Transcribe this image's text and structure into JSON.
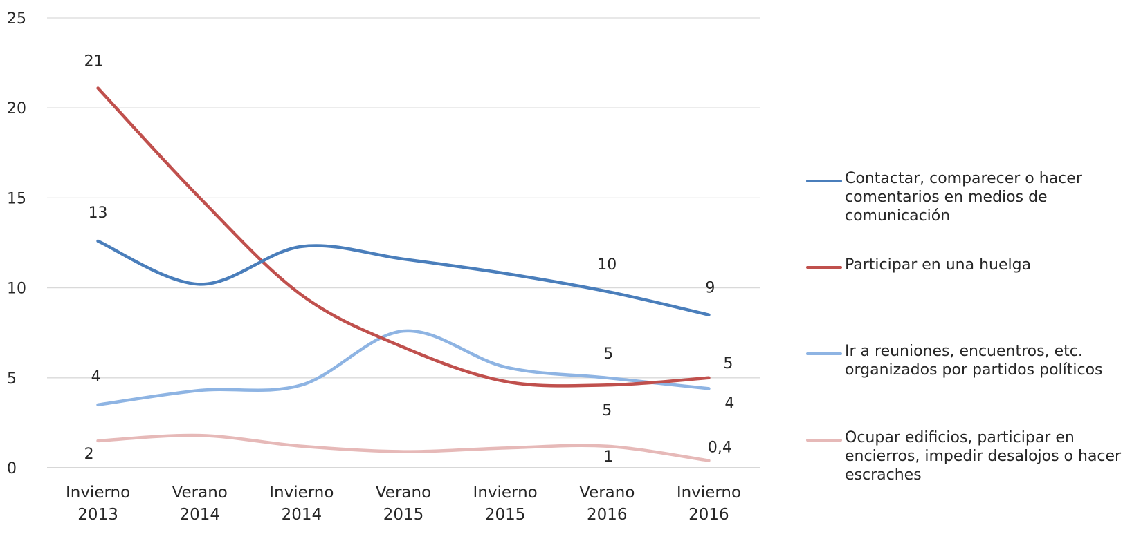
{
  "chart_data": {
    "type": "line",
    "categories": [
      "Invierno 2013",
      "Verano 2014",
      "Invierno 2014",
      "Verano 2015",
      "Invierno 2015",
      "Verano 2016",
      "Invierno 2016"
    ],
    "category_lines": [
      [
        "Invierno",
        "2013"
      ],
      [
        "Verano",
        "2014"
      ],
      [
        "Invierno",
        "2014"
      ],
      [
        "Verano",
        "2015"
      ],
      [
        "Invierno",
        "2015"
      ],
      [
        "Verano",
        "2016"
      ],
      [
        "Invierno",
        "2016"
      ]
    ],
    "ylim": [
      0,
      25
    ],
    "yticks": [
      0,
      5,
      10,
      15,
      20,
      25
    ],
    "grid": true,
    "smooth": true,
    "legend_position": "right",
    "title": "",
    "xlabel": "",
    "ylabel": "",
    "series": [
      {
        "name": "Contactar, comparecer o hacer comentarios en medios de comunicación",
        "color": "#4a7ebb",
        "values": [
          12.6,
          10.2,
          12.3,
          11.6,
          10.8,
          9.8,
          8.5
        ],
        "labels": [
          {
            "index": 0,
            "text": "13"
          },
          {
            "index": 5,
            "text": "10"
          },
          {
            "index": 6,
            "text": "9"
          }
        ]
      },
      {
        "name": "Participar en una huelga",
        "color": "#c0504d",
        "values": [
          21.1,
          15.0,
          9.6,
          6.7,
          4.8,
          4.6,
          5.0
        ],
        "labels": [
          {
            "index": 0,
            "text": "21"
          },
          {
            "index": 5,
            "text": "5"
          },
          {
            "index": 6,
            "text": "5"
          }
        ]
      },
      {
        "name": "Ir a reuniones, encuentros, etc. organizados por partidos políticos",
        "color": "#8eb4e3",
        "values": [
          3.5,
          4.3,
          4.6,
          7.6,
          5.6,
          5.0,
          4.4
        ],
        "labels": [
          {
            "index": 0,
            "text": "4"
          },
          {
            "index": 5,
            "text": "5"
          },
          {
            "index": 6,
            "text": "4"
          }
        ]
      },
      {
        "name": "Ocupar edificios, participar en encierros, impedir desalojos o hacer escraches",
        "color": "#e6b9b8",
        "values": [
          1.5,
          1.8,
          1.2,
          0.9,
          1.1,
          1.2,
          0.4
        ],
        "labels": [
          {
            "index": 0,
            "text": "2"
          },
          {
            "index": 5,
            "text": "1"
          },
          {
            "index": 6,
            "text": "0,4"
          }
        ]
      }
    ]
  }
}
